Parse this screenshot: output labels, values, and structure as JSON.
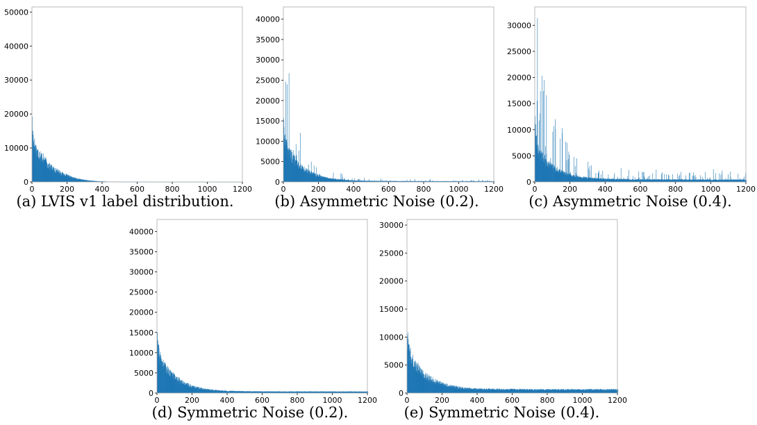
{
  "charts": [
    {
      "caption": "(a) LVIS v1 label distribution.",
      "chart_data": {
        "type": "bar",
        "title": "",
        "xlabel": "",
        "ylabel": "",
        "xlim": [
          0,
          1200
        ],
        "ylim": [
          0,
          51500
        ],
        "xticks": [
          0,
          200,
          400,
          600,
          800,
          1000,
          1200
        ],
        "yticks": [
          0,
          10000,
          20000,
          30000,
          40000,
          50000
        ],
        "profile": [
          [
            0,
            18000
          ],
          [
            3,
            14000
          ],
          [
            10,
            11500
          ],
          [
            25,
            9000
          ],
          [
            60,
            7000
          ],
          [
            100,
            4500
          ],
          [
            150,
            3000
          ],
          [
            200,
            1800
          ],
          [
            250,
            1000
          ],
          [
            300,
            550
          ],
          [
            350,
            280
          ],
          [
            400,
            150
          ],
          [
            450,
            80
          ],
          [
            500,
            40
          ],
          [
            600,
            15
          ],
          [
            800,
            5
          ],
          [
            1203,
            2
          ]
        ],
        "spike_amp": 0,
        "spike_freq": 0,
        "color": "#1f77b4",
        "grid": false,
        "legend": "none"
      }
    },
    {
      "caption": "(b) Asymmetric Noise (0.2).",
      "chart_data": {
        "type": "bar",
        "title": "",
        "xlabel": "",
        "ylabel": "",
        "xlim": [
          0,
          1200
        ],
        "ylim": [
          0,
          43000
        ],
        "xticks": [
          0,
          200,
          400,
          600,
          800,
          1000,
          1200
        ],
        "yticks": [
          0,
          5000,
          10000,
          15000,
          20000,
          25000,
          30000,
          35000,
          40000
        ],
        "profile": [
          [
            0,
            15000
          ],
          [
            3,
            12000
          ],
          [
            10,
            9500
          ],
          [
            25,
            7500
          ],
          [
            60,
            5500
          ],
          [
            100,
            3500
          ],
          [
            150,
            2300
          ],
          [
            200,
            1500
          ],
          [
            250,
            950
          ],
          [
            300,
            650
          ],
          [
            350,
            450
          ],
          [
            400,
            350
          ],
          [
            500,
            250
          ],
          [
            600,
            200
          ],
          [
            800,
            180
          ],
          [
            1000,
            160
          ],
          [
            1203,
            150
          ]
        ],
        "spike_amp": 1.5,
        "spike_freq": 0.06,
        "color": "#1f77b4",
        "grid": false,
        "legend": "none"
      }
    },
    {
      "caption": "(c) Asymmetric Noise (0.4).",
      "chart_data": {
        "type": "bar",
        "title": "",
        "xlabel": "",
        "ylabel": "",
        "xlim": [
          0,
          1200
        ],
        "ylim": [
          0,
          33500
        ],
        "xticks": [
          0,
          200,
          400,
          600,
          800,
          1000,
          1200
        ],
        "yticks": [
          0,
          5000,
          10000,
          15000,
          20000,
          25000,
          30000
        ],
        "profile": [
          [
            0,
            12000
          ],
          [
            3,
            9500
          ],
          [
            10,
            7500
          ],
          [
            25,
            5500
          ],
          [
            60,
            4000
          ],
          [
            100,
            2800
          ],
          [
            150,
            1900
          ],
          [
            200,
            1300
          ],
          [
            250,
            950
          ],
          [
            300,
            750
          ],
          [
            350,
            620
          ],
          [
            400,
            540
          ],
          [
            500,
            480
          ],
          [
            600,
            440
          ],
          [
            800,
            420
          ],
          [
            1000,
            400
          ],
          [
            1203,
            390
          ]
        ],
        "spike_amp": 2.5,
        "spike_freq": 0.1,
        "color": "#1f77b4",
        "grid": false,
        "legend": "none"
      }
    },
    {
      "caption": "(d) Symmetric Noise (0.2).",
      "chart_data": {
        "type": "bar",
        "title": "",
        "xlabel": "",
        "ylabel": "",
        "xlim": [
          0,
          1200
        ],
        "ylim": [
          0,
          43000
        ],
        "xticks": [
          0,
          200,
          400,
          600,
          800,
          1000,
          1200
        ],
        "yticks": [
          0,
          5000,
          10000,
          15000,
          20000,
          25000,
          30000,
          35000,
          40000
        ],
        "profile": [
          [
            0,
            14500
          ],
          [
            3,
            11500
          ],
          [
            10,
            9500
          ],
          [
            25,
            7500
          ],
          [
            60,
            5500
          ],
          [
            100,
            3800
          ],
          [
            150,
            2500
          ],
          [
            200,
            1600
          ],
          [
            250,
            1100
          ],
          [
            300,
            800
          ],
          [
            350,
            600
          ],
          [
            400,
            500
          ],
          [
            500,
            400
          ],
          [
            600,
            370
          ],
          [
            800,
            360
          ],
          [
            1000,
            350
          ],
          [
            1203,
            350
          ]
        ],
        "spike_amp": 0,
        "spike_freq": 0,
        "color": "#1f77b4",
        "grid": false,
        "legend": "none"
      }
    },
    {
      "caption": "(e) Symmetric Noise (0.4).",
      "chart_data": {
        "type": "bar",
        "title": "",
        "xlabel": "",
        "ylabel": "",
        "xlim": [
          0,
          1200
        ],
        "ylim": [
          0,
          31000
        ],
        "xticks": [
          0,
          200,
          400,
          600,
          800,
          1000,
          1200
        ],
        "yticks": [
          0,
          5000,
          10000,
          15000,
          20000,
          25000,
          30000
        ],
        "profile": [
          [
            0,
            11000
          ],
          [
            3,
            9000
          ],
          [
            10,
            7500
          ],
          [
            25,
            6000
          ],
          [
            60,
            4500
          ],
          [
            100,
            3200
          ],
          [
            150,
            2200
          ],
          [
            200,
            1600
          ],
          [
            250,
            1200
          ],
          [
            300,
            950
          ],
          [
            350,
            800
          ],
          [
            400,
            700
          ],
          [
            500,
            650
          ],
          [
            600,
            620
          ],
          [
            800,
            600
          ],
          [
            1000,
            600
          ],
          [
            1203,
            600
          ]
        ],
        "spike_amp": 0,
        "spike_freq": 0,
        "color": "#1f77b4",
        "grid": false,
        "legend": "none"
      }
    }
  ]
}
